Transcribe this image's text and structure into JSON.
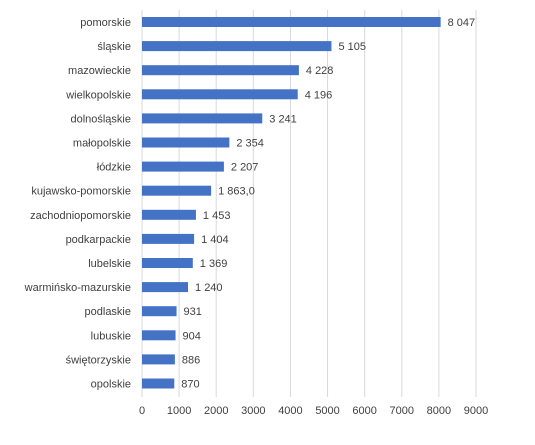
{
  "chart_data": {
    "type": "bar",
    "orientation": "horizontal",
    "title": "",
    "xlabel": "",
    "ylabel": "",
    "xlim": [
      0,
      9000
    ],
    "x_ticks": [
      "0",
      "1000",
      "2000",
      "3000",
      "4000",
      "5000",
      "6000",
      "7000",
      "8000",
      "9000"
    ],
    "grid": true,
    "legend": "none",
    "bar_color": "#4472C4",
    "categories": [
      "pomorskie",
      "śląskie",
      "mazowieckie",
      "wielkopolskie",
      "dolnośląskie",
      "małopolskie",
      "łódzkie",
      "kujawsko-pomorskie",
      "zachodniopomorskie",
      "podkarpackie",
      "lubelskie",
      "warmińsko-mazurskie",
      "podlaskie",
      "lubuskie",
      "świętorzyskie",
      "opolskie"
    ],
    "values": [
      8047,
      5105,
      4228,
      4196,
      3241,
      2354,
      2207,
      1863.0,
      1453,
      1404,
      1369,
      1240,
      931,
      904,
      886,
      870
    ],
    "value_labels": [
      "8 047",
      "5 105",
      "4 228",
      "4 196",
      "3 241",
      "2 354",
      "2 207",
      "1 863,0",
      "1 453",
      "1 404",
      "1 369",
      "1 240",
      "931",
      "904",
      "886",
      "870"
    ]
  }
}
